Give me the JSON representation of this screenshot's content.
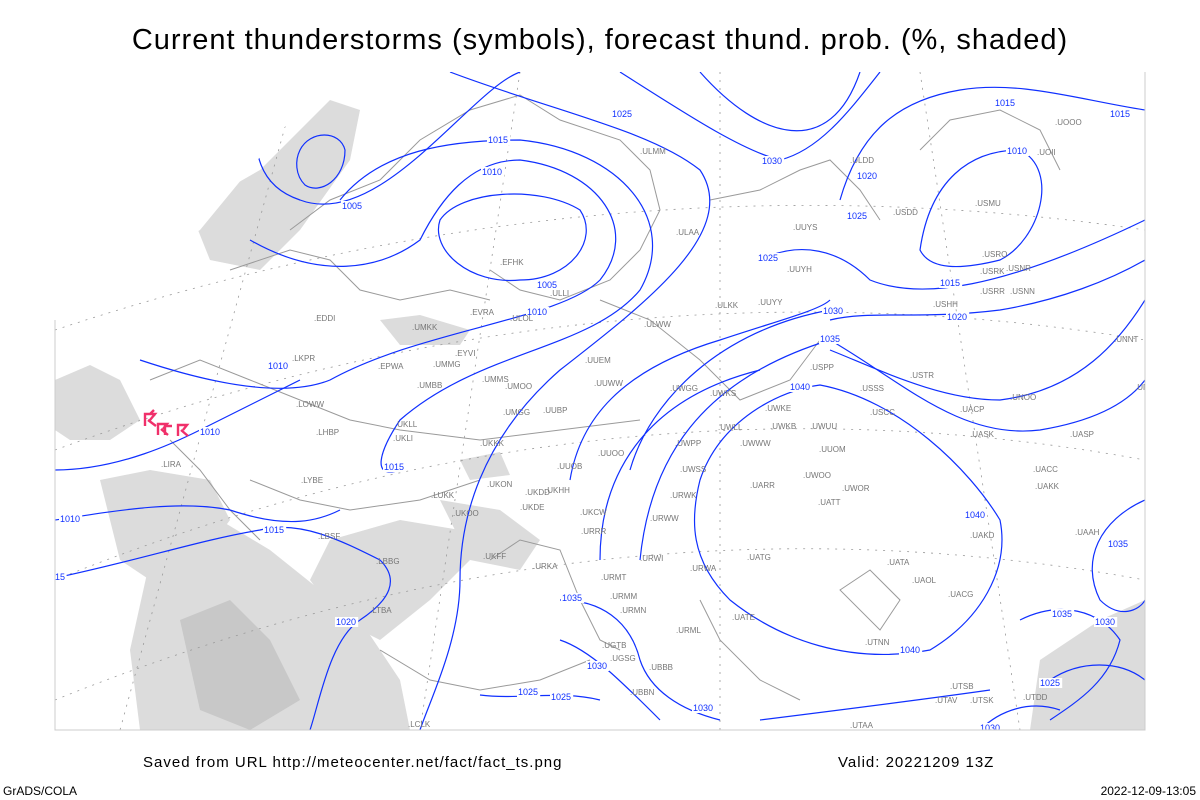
{
  "title": "Current thunderstorms (symbols), forecast thund. prob. (%, shaded)",
  "footer": {
    "source": "Saved from URL http://meteocenter.net/fact/fact_ts.png",
    "valid": "Valid: 20221209 13Z",
    "software": "GrADS/COLA",
    "timestamp": "2022-12-09-13:05"
  },
  "colors": {
    "isobars": "#1030ff",
    "thunderstorm_symbols": "#f0306a",
    "shading": "#dcdcdc",
    "borders": "#9a9a9a"
  },
  "legend_icons": {
    "thunderstorm": "thunderstorm-symbol-icon"
  },
  "thunderstorm_count": 4,
  "isobar_labels": [
    "1025",
    "1015",
    "1010",
    "1005",
    "1030",
    "1020",
    "1025",
    "1015",
    "1015",
    "1010",
    "1025",
    "1015",
    "1020",
    "1030",
    "1035",
    "1040",
    "1005",
    "1010",
    "1010",
    "1010",
    "1010",
    "1015",
    "15",
    "1015",
    "1020",
    "1035",
    "1030",
    "1025",
    "1025",
    "1030",
    "1040",
    "1040",
    "1035",
    "1035",
    "1030",
    "1025",
    "1030"
  ],
  "stations": [
    "EDDI",
    "EPWA",
    "UMMG",
    "EYVI",
    "UMMS",
    "UMOO",
    "UMBB",
    "LKPR",
    "LOWW",
    "LHBP",
    "LYBE",
    "LIRA",
    "EFHK",
    "ULLI",
    "ULOL",
    "EVRA",
    "UMKK",
    "UKLL",
    "UKLI",
    "UKKK",
    "UKON",
    "UKOO",
    "LUKK",
    "UKDE",
    "UKHH",
    "UKDD",
    "UUOB",
    "UMGG",
    "UUBP",
    "UUEM",
    "UUWW",
    "UUOO",
    "ULWW",
    "ULAA",
    "ULKK",
    "UUYY",
    "UUYH",
    "UUYS",
    "ULDD",
    "USDD",
    "USMU",
    "USRO",
    "USRK",
    "USNR",
    "USRR",
    "USNN",
    "USHH",
    "USPP",
    "USSS",
    "USCC",
    "USTR",
    "UACP",
    "UNOO",
    "UASK",
    "UASP",
    "UNNT",
    "UNBB",
    "UACC",
    "UAKK",
    "UAAH",
    "UAKD",
    "UWKE",
    "UWKB",
    "UWUU",
    "UWWW",
    "UWLL",
    "UWGG",
    "UWKS",
    "UWPP",
    "UWSS",
    "URWK",
    "URWW",
    "UUOM",
    "UWOO",
    "UWOR",
    "UATT",
    "UARR",
    "UKCW",
    "URRR",
    "UKFF",
    "URKA",
    "URWI",
    "URWA",
    "UATG",
    "UATA",
    "UAOL",
    "UACG",
    "URMT",
    "URMM",
    "URMN",
    "UATE",
    "URML",
    "UGTB",
    "UGSG",
    "UBBB",
    "UBBN",
    "UTNN",
    "UTDD",
    "UTSK",
    "UTSB",
    "UTAA",
    "UTAV",
    "LBSF",
    "LBBG",
    "LTBA",
    "LCLK",
    "ULMM",
    "UOOO",
    "UOII"
  ]
}
